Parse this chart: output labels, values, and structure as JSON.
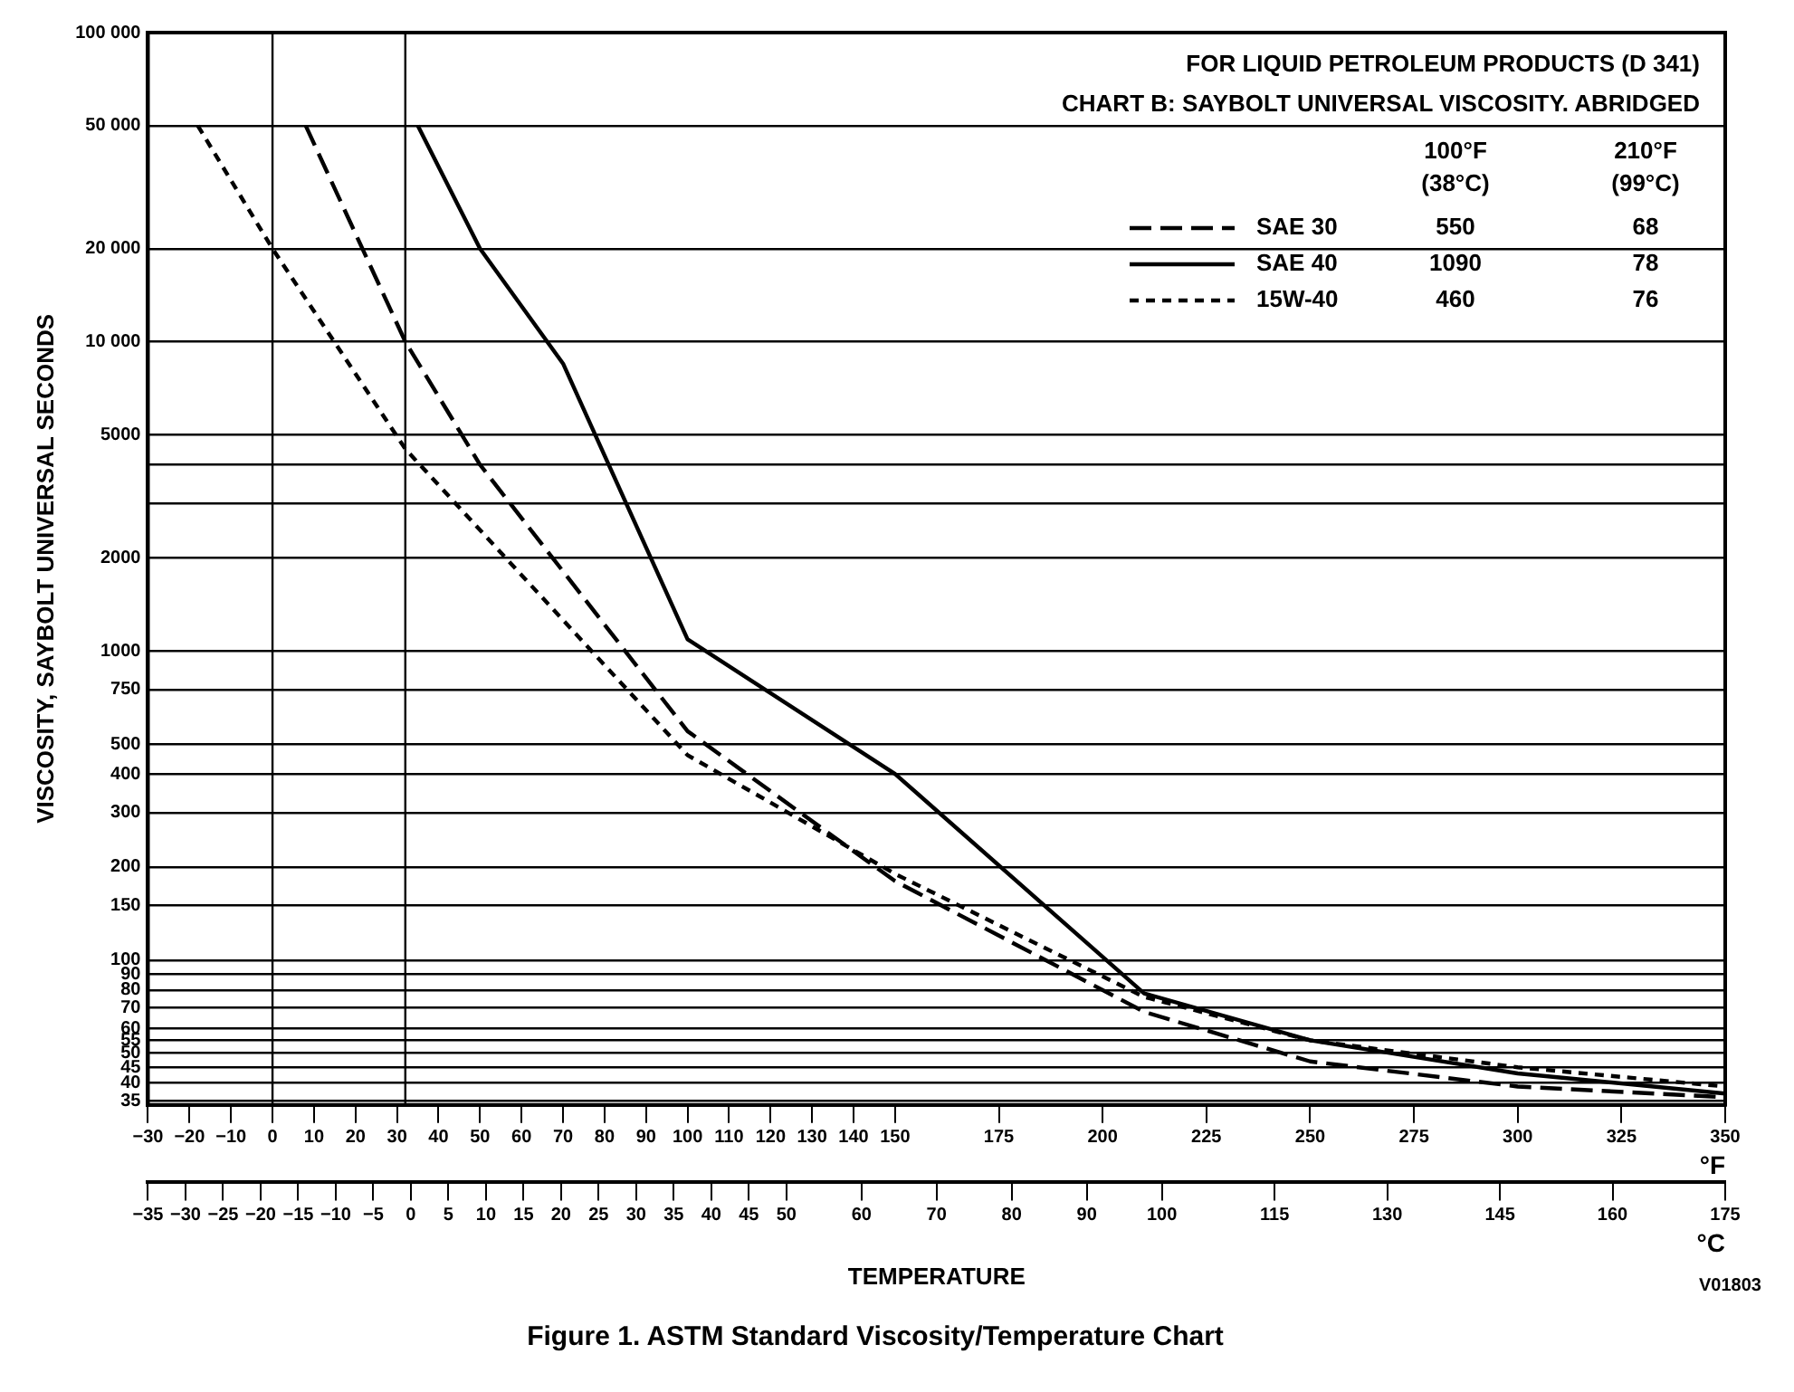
{
  "chart_data": {
    "type": "line",
    "title": "Figure 1. ASTM Standard Viscosity/Temperature Chart",
    "xlabel": "°F",
    "x2label": "°C",
    "ylabel": "VISCOSITY, SAYBOLT UNIVERSAL SECONDS",
    "series": [
      {
        "name": "SAE 30",
        "color": "#000000",
        "line_style": "dashed",
        "x": [
          8,
          32,
          50,
          100,
          150,
          210,
          250,
          300,
          350
        ],
        "values": [
          50000,
          10000,
          4000,
          550,
          180,
          68,
          47,
          39,
          36
        ]
      },
      {
        "name": "SAE 40",
        "color": "#000000",
        "line_style": "solid",
        "x": [
          35,
          50,
          70,
          100,
          150,
          210,
          250,
          300,
          350
        ],
        "values": [
          50000,
          20000,
          8500,
          1090,
          400,
          78,
          55,
          43,
          37
        ]
      },
      {
        "name": "15W-40",
        "color": "#000000",
        "line_style": "dotted",
        "x": [
          -18,
          0,
          32,
          100,
          150,
          210,
          250,
          300,
          350
        ],
        "values": [
          50000,
          20000,
          4500,
          460,
          190,
          76,
          55,
          45,
          39
        ]
      }
    ],
    "log": "y",
    "ylim": [
      34,
      100000
    ],
    "yticks": [
      35,
      40,
      45,
      50,
      55,
      60,
      70,
      80,
      90,
      100,
      150,
      200,
      300,
      400,
      500,
      750,
      1000,
      2000,
      {
        "value": 3000,
        "label": null
      },
      {
        "value": 4000,
        "label": null
      },
      5000,
      {
        "value": 10000,
        "label": "10 000"
      },
      {
        "value": 20000,
        "label": "20 000"
      },
      {
        "value": 50000,
        "label": "50 000"
      },
      {
        "value": 100000,
        "label": "100 000"
      }
    ],
    "xlim": [
      -30,
      350
    ],
    "xticks": [
      {
        "value": -30,
        "label": "−30"
      },
      {
        "value": -20,
        "label": "−20"
      },
      {
        "value": -10,
        "label": "−10"
      },
      0,
      10,
      20,
      30,
      40,
      50,
      60,
      70,
      80,
      90,
      100,
      110,
      120,
      130,
      140,
      150,
      175,
      200,
      225,
      250,
      275,
      300,
      325,
      350
    ],
    "x2lim": [
      -35,
      175
    ],
    "x2ticks": [
      {
        "value": -35,
        "label": "−35"
      },
      {
        "value": -30,
        "label": "−30"
      },
      {
        "value": -25,
        "label": "−25"
      },
      {
        "value": -20,
        "label": "−20"
      },
      {
        "value": -15,
        "label": "−15"
      },
      {
        "value": -10,
        "label": "−10"
      },
      {
        "value": -5,
        "label": "−5"
      },
      0,
      5,
      10,
      15,
      20,
      25,
      30,
      35,
      40,
      45,
      50,
      60,
      70,
      80,
      90,
      100,
      115,
      130,
      145,
      160,
      175
    ],
    "ref_lines": [
      {
        "axis": "x",
        "value": 0,
        "color": "#000000"
      },
      {
        "axis": "x",
        "value": 32,
        "color": "#000000"
      }
    ],
    "grid": "y",
    "legend": "top right",
    "annotations": [
      "FOR LIQUID PETROLEUM PRODUCTS (D 341)",
      "CHART B: SAYBOLT UNIVERSAL VISCOSITY. ABRIDGED",
      "100°F (38°C)",
      "210°F (99°C)",
      "550",
      "68",
      "1090",
      "78",
      "460",
      "76",
      "TEMPERATURE",
      "V01803"
    ]
  }
}
